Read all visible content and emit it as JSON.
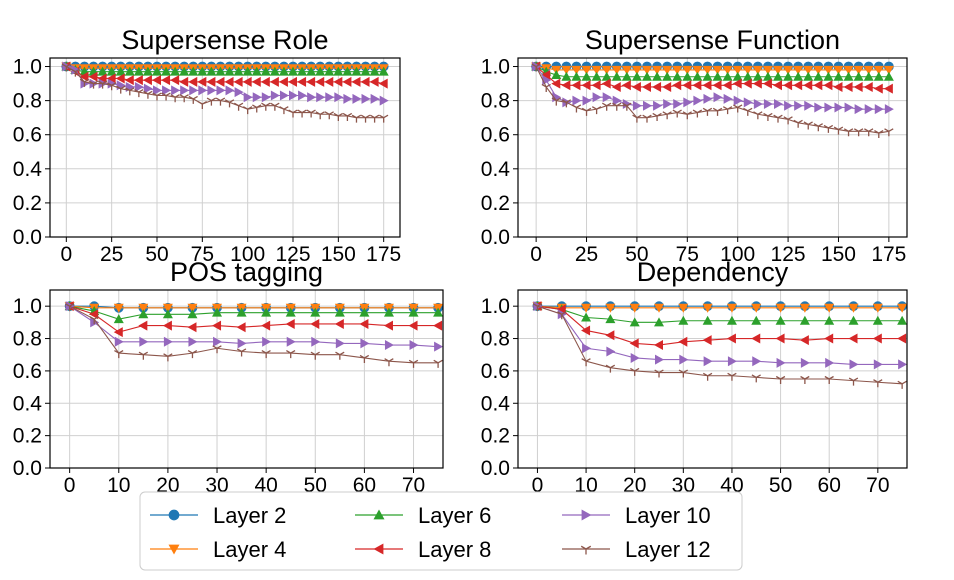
{
  "chart_data": [
    {
      "type": "line",
      "title": "Supersense Role",
      "xlim": [
        -9,
        184
      ],
      "ylim": [
        0,
        1.05
      ],
      "xticks": [
        0,
        25,
        50,
        75,
        100,
        125,
        150,
        175
      ],
      "yticks": [
        0.0,
        0.2,
        0.4,
        0.6,
        0.8,
        1.0
      ],
      "tick_labels_x": [
        "0",
        "25",
        "50",
        "75",
        "100",
        "125",
        "150",
        "175"
      ],
      "tick_labels_y": [
        "0.0",
        "0.2",
        "0.4",
        "0.6",
        "0.8",
        "1.0"
      ],
      "grid": true,
      "x": [
        0,
        5,
        10,
        15,
        20,
        25,
        30,
        35,
        40,
        45,
        50,
        55,
        60,
        65,
        70,
        75,
        80,
        85,
        90,
        95,
        100,
        105,
        110,
        115,
        120,
        125,
        130,
        135,
        140,
        145,
        150,
        155,
        160,
        165,
        170,
        175
      ],
      "series": [
        {
          "name": "Layer 2",
          "color": "#1f77b4",
          "marker": "circle",
          "values": [
            1.0,
            1.0,
            1.0,
            1.0,
            1.0,
            1.0,
            1.0,
            1.0,
            1.0,
            1.0,
            1.0,
            1.0,
            1.0,
            1.0,
            1.0,
            1.0,
            1.0,
            1.0,
            1.0,
            1.0,
            1.0,
            1.0,
            1.0,
            1.0,
            1.0,
            1.0,
            1.0,
            1.0,
            1.0,
            1.0,
            1.0,
            1.0,
            1.0,
            1.0,
            1.0,
            1.0
          ]
        },
        {
          "name": "Layer 4",
          "color": "#ff7f0e",
          "marker": "triangle-down",
          "values": [
            1.0,
            0.99,
            0.99,
            0.99,
            0.99,
            0.99,
            0.99,
            0.99,
            0.99,
            0.99,
            0.99,
            0.99,
            0.99,
            0.99,
            0.99,
            0.99,
            0.99,
            0.99,
            0.99,
            0.99,
            0.99,
            0.99,
            0.99,
            0.99,
            0.99,
            0.99,
            0.99,
            0.99,
            0.99,
            0.99,
            0.99,
            0.99,
            0.99,
            0.99,
            0.99,
            0.99
          ]
        },
        {
          "name": "Layer 6",
          "color": "#2ca02c",
          "marker": "triangle-up",
          "values": [
            1.0,
            0.98,
            0.97,
            0.97,
            0.97,
            0.97,
            0.97,
            0.97,
            0.97,
            0.97,
            0.97,
            0.97,
            0.97,
            0.97,
            0.97,
            0.97,
            0.97,
            0.97,
            0.97,
            0.97,
            0.97,
            0.97,
            0.97,
            0.97,
            0.97,
            0.97,
            0.97,
            0.97,
            0.97,
            0.97,
            0.97,
            0.97,
            0.97,
            0.97,
            0.97,
            0.97
          ]
        },
        {
          "name": "Layer 8",
          "color": "#d62728",
          "marker": "triangle-left",
          "values": [
            1.0,
            0.97,
            0.94,
            0.94,
            0.93,
            0.93,
            0.93,
            0.92,
            0.92,
            0.92,
            0.92,
            0.92,
            0.92,
            0.91,
            0.91,
            0.91,
            0.91,
            0.91,
            0.91,
            0.91,
            0.91,
            0.91,
            0.91,
            0.91,
            0.91,
            0.91,
            0.91,
            0.91,
            0.91,
            0.91,
            0.91,
            0.91,
            0.91,
            0.91,
            0.91,
            0.9
          ]
        },
        {
          "name": "Layer 10",
          "color": "#9467bd",
          "marker": "triangle-right",
          "values": [
            1.0,
            0.98,
            0.9,
            0.9,
            0.9,
            0.9,
            0.89,
            0.88,
            0.88,
            0.87,
            0.86,
            0.86,
            0.86,
            0.86,
            0.86,
            0.86,
            0.86,
            0.86,
            0.86,
            0.85,
            0.82,
            0.82,
            0.82,
            0.83,
            0.83,
            0.83,
            0.83,
            0.82,
            0.82,
            0.82,
            0.82,
            0.81,
            0.81,
            0.81,
            0.81,
            0.8
          ]
        },
        {
          "name": "Layer 12",
          "color": "#8c564b",
          "marker": "tri-down",
          "values": [
            1.0,
            0.97,
            0.91,
            0.9,
            0.9,
            0.89,
            0.87,
            0.86,
            0.85,
            0.84,
            0.83,
            0.83,
            0.82,
            0.82,
            0.81,
            0.78,
            0.8,
            0.8,
            0.79,
            0.77,
            0.75,
            0.76,
            0.77,
            0.77,
            0.75,
            0.73,
            0.73,
            0.73,
            0.72,
            0.72,
            0.71,
            0.71,
            0.7,
            0.7,
            0.7,
            0.7
          ]
        }
      ]
    },
    {
      "type": "line",
      "title": "Supersense Function",
      "xlim": [
        -9,
        184
      ],
      "ylim": [
        0,
        1.05
      ],
      "xticks": [
        0,
        25,
        50,
        75,
        100,
        125,
        150,
        175
      ],
      "yticks": [
        0.0,
        0.2,
        0.4,
        0.6,
        0.8,
        1.0
      ],
      "tick_labels_x": [
        "0",
        "25",
        "50",
        "75",
        "100",
        "125",
        "150",
        "175"
      ],
      "tick_labels_y": [
        "0.0",
        "0.2",
        "0.4",
        "0.6",
        "0.8",
        "1.0"
      ],
      "grid": true,
      "x": [
        0,
        5,
        10,
        15,
        20,
        25,
        30,
        35,
        40,
        45,
        50,
        55,
        60,
        65,
        70,
        75,
        80,
        85,
        90,
        95,
        100,
        105,
        110,
        115,
        120,
        125,
        130,
        135,
        140,
        145,
        150,
        155,
        160,
        165,
        170,
        175
      ],
      "series": [
        {
          "name": "Layer 2",
          "color": "#1f77b4",
          "marker": "circle",
          "values": [
            1.0,
            1.0,
            1.0,
            1.0,
            1.0,
            1.0,
            1.0,
            1.0,
            1.0,
            1.0,
            1.0,
            1.0,
            1.0,
            1.0,
            1.0,
            1.0,
            1.0,
            1.0,
            1.0,
            1.0,
            1.0,
            1.0,
            1.0,
            1.0,
            1.0,
            1.0,
            1.0,
            1.0,
            1.0,
            1.0,
            1.0,
            1.0,
            1.0,
            1.0,
            1.0,
            1.0
          ]
        },
        {
          "name": "Layer 4",
          "color": "#ff7f0e",
          "marker": "triangle-down",
          "values": [
            1.0,
            0.99,
            0.98,
            0.98,
            0.98,
            0.98,
            0.98,
            0.98,
            0.98,
            0.98,
            0.98,
            0.98,
            0.98,
            0.98,
            0.98,
            0.98,
            0.98,
            0.98,
            0.98,
            0.98,
            0.98,
            0.98,
            0.98,
            0.98,
            0.98,
            0.98,
            0.98,
            0.98,
            0.98,
            0.98,
            0.98,
            0.98,
            0.98,
            0.98,
            0.98,
            0.98
          ]
        },
        {
          "name": "Layer 6",
          "color": "#2ca02c",
          "marker": "triangle-up",
          "values": [
            1.0,
            0.97,
            0.95,
            0.94,
            0.94,
            0.94,
            0.94,
            0.94,
            0.94,
            0.94,
            0.94,
            0.94,
            0.94,
            0.94,
            0.94,
            0.94,
            0.94,
            0.94,
            0.94,
            0.94,
            0.94,
            0.94,
            0.94,
            0.94,
            0.94,
            0.94,
            0.94,
            0.94,
            0.94,
            0.94,
            0.94,
            0.94,
            0.94,
            0.94,
            0.94,
            0.94
          ]
        },
        {
          "name": "Layer 8",
          "color": "#d62728",
          "marker": "triangle-left",
          "values": [
            1.0,
            0.95,
            0.9,
            0.89,
            0.89,
            0.89,
            0.89,
            0.9,
            0.88,
            0.89,
            0.88,
            0.88,
            0.88,
            0.88,
            0.89,
            0.89,
            0.89,
            0.89,
            0.89,
            0.89,
            0.9,
            0.9,
            0.9,
            0.9,
            0.89,
            0.89,
            0.89,
            0.89,
            0.89,
            0.89,
            0.88,
            0.88,
            0.88,
            0.88,
            0.87,
            0.87
          ]
        },
        {
          "name": "Layer 10",
          "color": "#9467bd",
          "marker": "triangle-right",
          "values": [
            1.0,
            0.92,
            0.82,
            0.79,
            0.8,
            0.8,
            0.82,
            0.82,
            0.8,
            0.78,
            0.77,
            0.77,
            0.77,
            0.78,
            0.78,
            0.79,
            0.8,
            0.81,
            0.82,
            0.81,
            0.8,
            0.79,
            0.78,
            0.78,
            0.78,
            0.77,
            0.77,
            0.77,
            0.76,
            0.76,
            0.76,
            0.76,
            0.75,
            0.75,
            0.75,
            0.75
          ]
        },
        {
          "name": "Layer 12",
          "color": "#8c564b",
          "marker": "tri-down",
          "values": [
            1.0,
            0.88,
            0.8,
            0.79,
            0.76,
            0.74,
            0.75,
            0.77,
            0.77,
            0.77,
            0.7,
            0.7,
            0.71,
            0.72,
            0.73,
            0.72,
            0.73,
            0.74,
            0.74,
            0.75,
            0.76,
            0.74,
            0.72,
            0.71,
            0.7,
            0.69,
            0.67,
            0.66,
            0.65,
            0.64,
            0.63,
            0.62,
            0.62,
            0.62,
            0.61,
            0.62
          ]
        }
      ]
    },
    {
      "type": "line",
      "title": "POS tagging",
      "xlim": [
        -4,
        76
      ],
      "ylim": [
        0,
        1.1
      ],
      "xticks": [
        0,
        10,
        20,
        30,
        40,
        50,
        60,
        70
      ],
      "yticks": [
        0.0,
        0.2,
        0.4,
        0.6,
        0.8,
        1.0
      ],
      "tick_labels_x": [
        "0",
        "10",
        "20",
        "30",
        "40",
        "50",
        "60",
        "70"
      ],
      "tick_labels_y": [
        "0.0",
        "0.2",
        "0.4",
        "0.6",
        "0.8",
        "1.0"
      ],
      "grid": true,
      "x": [
        0,
        5,
        10,
        15,
        20,
        25,
        30,
        35,
        40,
        45,
        50,
        55,
        60,
        65,
        70,
        75
      ],
      "series": [
        {
          "name": "Layer 2",
          "color": "#1f77b4",
          "marker": "circle",
          "values": [
            1.0,
            1.0,
            0.99,
            0.99,
            0.99,
            0.99,
            0.99,
            0.99,
            0.99,
            0.99,
            0.99,
            0.99,
            0.99,
            0.99,
            0.99,
            0.99
          ]
        },
        {
          "name": "Layer 4",
          "color": "#ff7f0e",
          "marker": "triangle-down",
          "values": [
            1.0,
            0.99,
            0.99,
            0.99,
            0.99,
            0.99,
            0.99,
            0.99,
            0.99,
            0.99,
            0.99,
            0.99,
            0.99,
            0.99,
            0.99,
            0.99
          ]
        },
        {
          "name": "Layer 6",
          "color": "#2ca02c",
          "marker": "triangle-up",
          "values": [
            1.0,
            0.97,
            0.92,
            0.95,
            0.95,
            0.95,
            0.96,
            0.96,
            0.96,
            0.96,
            0.96,
            0.96,
            0.96,
            0.96,
            0.96,
            0.96
          ]
        },
        {
          "name": "Layer 8",
          "color": "#d62728",
          "marker": "triangle-left",
          "values": [
            1.0,
            0.95,
            0.84,
            0.88,
            0.88,
            0.87,
            0.88,
            0.87,
            0.88,
            0.89,
            0.89,
            0.89,
            0.89,
            0.88,
            0.88,
            0.88
          ]
        },
        {
          "name": "Layer 10",
          "color": "#9467bd",
          "marker": "triangle-right",
          "values": [
            1.0,
            0.9,
            0.78,
            0.78,
            0.78,
            0.78,
            0.78,
            0.77,
            0.78,
            0.78,
            0.78,
            0.77,
            0.77,
            0.76,
            0.76,
            0.75
          ]
        },
        {
          "name": "Layer 12",
          "color": "#8c564b",
          "marker": "tri-down",
          "values": [
            1.0,
            0.92,
            0.71,
            0.7,
            0.69,
            0.71,
            0.74,
            0.72,
            0.71,
            0.71,
            0.7,
            0.7,
            0.68,
            0.66,
            0.65,
            0.65
          ]
        }
      ]
    },
    {
      "type": "line",
      "title": "Dependency",
      "xlim": [
        -4,
        76
      ],
      "ylim": [
        0,
        1.1
      ],
      "xticks": [
        0,
        10,
        20,
        30,
        40,
        50,
        60,
        70
      ],
      "yticks": [
        0.0,
        0.2,
        0.4,
        0.6,
        0.8,
        1.0
      ],
      "tick_labels_x": [
        "0",
        "10",
        "20",
        "30",
        "40",
        "50",
        "60",
        "70"
      ],
      "tick_labels_y": [
        "0.0",
        "0.2",
        "0.4",
        "0.6",
        "0.8",
        "1.0"
      ],
      "grid": true,
      "x": [
        0,
        5,
        10,
        15,
        20,
        25,
        30,
        35,
        40,
        45,
        50,
        55,
        60,
        65,
        70,
        75
      ],
      "series": [
        {
          "name": "Layer 2",
          "color": "#1f77b4",
          "marker": "circle",
          "values": [
            1.0,
            1.0,
            1.0,
            1.0,
            1.0,
            1.0,
            1.0,
            1.0,
            1.0,
            1.0,
            1.0,
            1.0,
            1.0,
            1.0,
            1.0,
            1.0
          ]
        },
        {
          "name": "Layer 4",
          "color": "#ff7f0e",
          "marker": "triangle-down",
          "values": [
            1.0,
            0.99,
            0.99,
            0.99,
            0.99,
            0.99,
            0.99,
            0.99,
            0.99,
            0.99,
            0.99,
            0.99,
            0.99,
            0.99,
            0.99,
            0.99
          ]
        },
        {
          "name": "Layer 6",
          "color": "#2ca02c",
          "marker": "triangle-up",
          "values": [
            1.0,
            0.98,
            0.93,
            0.92,
            0.9,
            0.9,
            0.91,
            0.91,
            0.91,
            0.91,
            0.91,
            0.91,
            0.91,
            0.91,
            0.91,
            0.91
          ]
        },
        {
          "name": "Layer 8",
          "color": "#d62728",
          "marker": "triangle-left",
          "values": [
            1.0,
            0.98,
            0.85,
            0.82,
            0.77,
            0.76,
            0.78,
            0.79,
            0.8,
            0.8,
            0.8,
            0.79,
            0.8,
            0.8,
            0.8,
            0.8
          ]
        },
        {
          "name": "Layer 10",
          "color": "#9467bd",
          "marker": "triangle-right",
          "values": [
            1.0,
            0.95,
            0.74,
            0.72,
            0.68,
            0.67,
            0.67,
            0.66,
            0.66,
            0.66,
            0.65,
            0.65,
            0.65,
            0.64,
            0.64,
            0.64
          ]
        },
        {
          "name": "Layer 12",
          "color": "#8c564b",
          "marker": "tri-down",
          "values": [
            1.0,
            0.95,
            0.66,
            0.62,
            0.6,
            0.59,
            0.59,
            0.57,
            0.57,
            0.56,
            0.55,
            0.55,
            0.55,
            0.54,
            0.53,
            0.52
          ]
        }
      ]
    }
  ],
  "legend": {
    "placement": "bottom-center",
    "columns": 3,
    "entries": [
      {
        "label": "Layer 2",
        "color": "#1f77b4",
        "marker": "circle"
      },
      {
        "label": "Layer 4",
        "color": "#ff7f0e",
        "marker": "triangle-down"
      },
      {
        "label": "Layer 6",
        "color": "#2ca02c",
        "marker": "triangle-up"
      },
      {
        "label": "Layer 8",
        "color": "#d62728",
        "marker": "triangle-left"
      },
      {
        "label": "Layer 10",
        "color": "#9467bd",
        "marker": "triangle-right"
      },
      {
        "label": "Layer 12",
        "color": "#8c564b",
        "marker": "tri-down"
      }
    ]
  }
}
